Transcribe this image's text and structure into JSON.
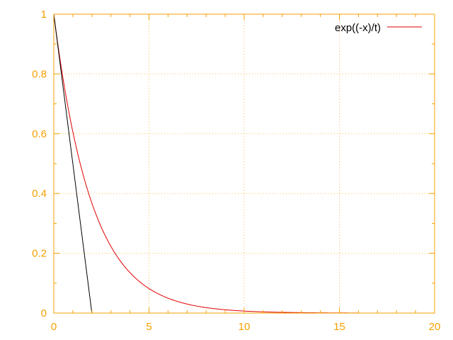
{
  "colors": {
    "axis": "#f5a000",
    "grid": "#f5c060",
    "exp_line": "#e00000",
    "tangent_line": "#000000",
    "background": "#ffffff"
  },
  "chart_data": {
    "type": "line",
    "title": "",
    "xlabel": "",
    "ylabel": "",
    "xlim": [
      0,
      20
    ],
    "ylim": [
      0,
      1
    ],
    "grid": true,
    "legend_position": "top-right",
    "x_ticks": [
      0,
      5,
      10,
      15,
      20
    ],
    "y_ticks": [
      0,
      0.2,
      0.4,
      0.6,
      0.8,
      1
    ],
    "x_tick_labels": [
      "0",
      "5",
      "10",
      "15",
      "20"
    ],
    "y_tick_labels": [
      "0",
      "0.2",
      "0.4",
      "0.6",
      "0.8",
      "1"
    ],
    "series": [
      {
        "name": "exp((-x)/t)",
        "in_legend": true,
        "x": [
          0,
          0.25,
          0.5,
          0.75,
          1,
          1.25,
          1.5,
          1.75,
          2,
          2.5,
          3,
          3.5,
          4,
          4.5,
          5,
          5.5,
          6,
          6.5,
          7,
          7.5,
          8,
          9,
          10,
          11,
          12,
          13,
          14,
          15,
          16
        ],
        "y": [
          1,
          0.8825,
          0.7788,
          0.6873,
          0.6065,
          0.5353,
          0.4724,
          0.4169,
          0.3679,
          0.2865,
          0.2231,
          0.1738,
          0.1353,
          0.1054,
          0.0821,
          0.0639,
          0.0498,
          0.0388,
          0.0302,
          0.0235,
          0.0183,
          0.0111,
          0.0067,
          0.0041,
          0.0025,
          0.0015,
          0.0009,
          0.0006,
          0.0003
        ]
      },
      {
        "name": "tangent line at x=0",
        "in_legend": false,
        "x": [
          0,
          2
        ],
        "y": [
          1,
          0
        ]
      }
    ]
  }
}
